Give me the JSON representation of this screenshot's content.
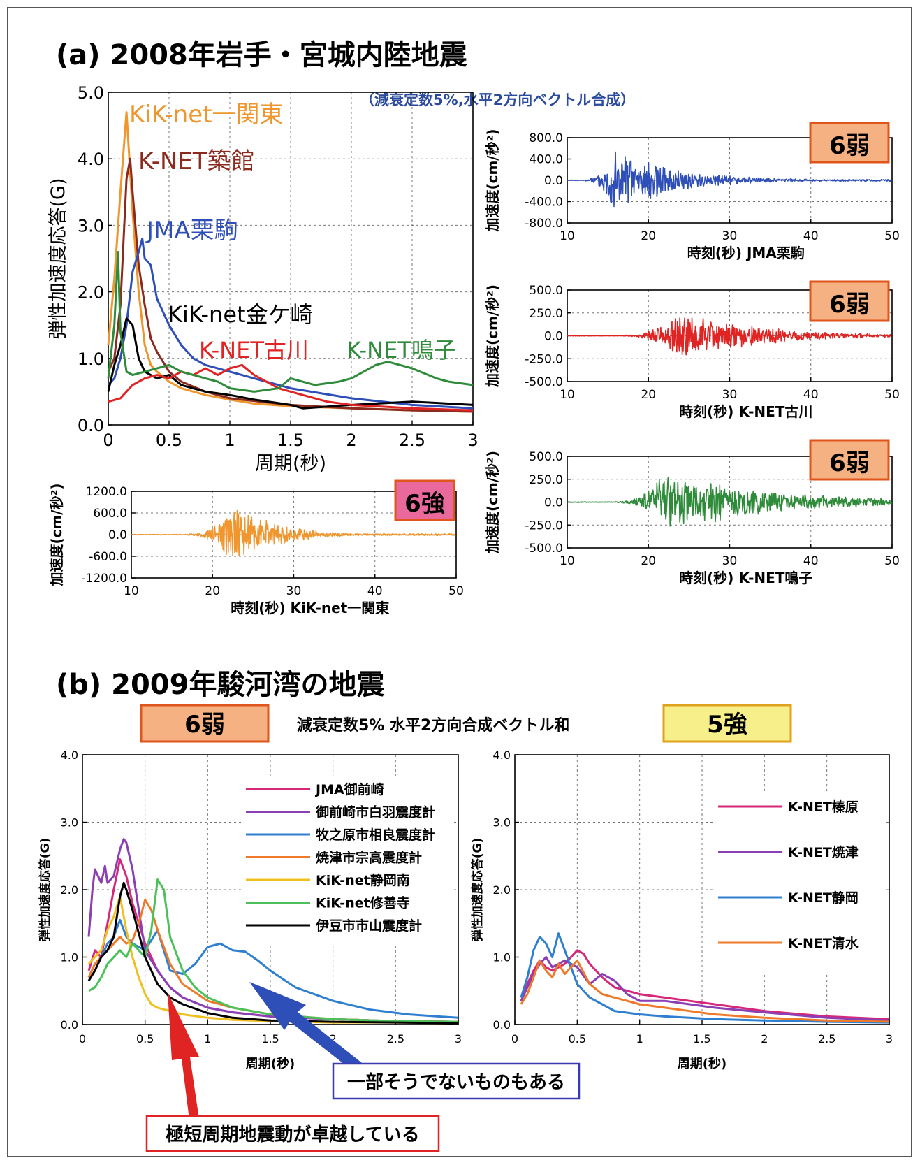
{
  "panel_a": {
    "title": "(a) 2008年岩手・宮城内陸地震",
    "note": "（減衰定数5%,水平2方向ベクトル合成）"
  },
  "panel_b": {
    "title": "(b) 2009年駿河湾の地震",
    "note": "減衰定数5% 水平2方向合成ベクトル和",
    "badge_left": "6弱",
    "badge_right": "5強",
    "arrow_red_label": "極短周期地震動が卓越している",
    "arrow_blue_label": "一部そうでないものもある"
  },
  "colors": {
    "kik_ichinoseki": "#f0962e",
    "knet_tsukidate": "#8b2a1f",
    "jma_kurikoma": "#2f4fb8",
    "kik_kanegasaki": "#000000",
    "knet_furukawa": "#e02424",
    "knet_naruko": "#2e8b3a",
    "badge_orange_fill": "#f6b183",
    "badge_pink_fill": "#e9699d",
    "badge_yellow_fill": "#f7f08a"
  },
  "chart_data": [
    {
      "id": "a_spectra",
      "type": "line",
      "title": "",
      "xlabel": "周期(秒)",
      "ylabel": "弾性加速度応答(G)",
      "xlim": [
        0,
        3
      ],
      "ylim": [
        0,
        5
      ],
      "xticks": [
        "0",
        "0.5",
        "1",
        "1.5",
        "2",
        "2.5",
        "3"
      ],
      "yticks": [
        "0.0",
        "1.0",
        "2.0",
        "3.0",
        "4.0",
        "5.0"
      ],
      "grid": true,
      "series": [
        {
          "name": "KiK-net一関東",
          "color": "#f0962e",
          "x": [
            0,
            0.05,
            0.1,
            0.15,
            0.2,
            0.25,
            0.3,
            0.35,
            0.4,
            0.5,
            0.6,
            0.8,
            1.0,
            1.2,
            1.5,
            2.0,
            2.5,
            3.0
          ],
          "y": [
            1.2,
            2.2,
            3.5,
            4.7,
            3.2,
            2.0,
            1.2,
            0.9,
            0.8,
            0.65,
            0.55,
            0.45,
            0.38,
            0.32,
            0.28,
            0.25,
            0.22,
            0.2
          ]
        },
        {
          "name": "K-NET築館",
          "color": "#8b2a1f",
          "x": [
            0,
            0.05,
            0.1,
            0.15,
            0.18,
            0.2,
            0.25,
            0.3,
            0.35,
            0.4,
            0.5,
            0.6,
            0.8,
            1.0,
            1.5,
            2.0,
            2.5,
            3.0
          ],
          "y": [
            0.8,
            1.0,
            1.8,
            3.7,
            4.0,
            3.5,
            2.4,
            1.8,
            1.3,
            1.1,
            0.8,
            0.65,
            0.5,
            0.4,
            0.3,
            0.25,
            0.22,
            0.2
          ]
        },
        {
          "name": "JMA栗駒",
          "color": "#2f4fb8",
          "x": [
            0,
            0.05,
            0.1,
            0.15,
            0.2,
            0.25,
            0.28,
            0.3,
            0.35,
            0.4,
            0.5,
            0.6,
            0.7,
            0.8,
            1.0,
            1.2,
            1.5,
            2.0,
            2.5,
            3.0
          ],
          "y": [
            0.6,
            0.7,
            1.0,
            1.5,
            2.3,
            2.6,
            2.8,
            2.5,
            2.4,
            1.9,
            1.5,
            1.2,
            1.0,
            0.9,
            0.8,
            0.7,
            0.55,
            0.4,
            0.3,
            0.25
          ]
        },
        {
          "name": "KiK-net金ケ崎",
          "color": "#000000",
          "x": [
            0,
            0.05,
            0.1,
            0.15,
            0.2,
            0.25,
            0.3,
            0.4,
            0.5,
            0.6,
            0.8,
            1.0,
            1.2,
            1.5,
            1.6,
            2.0,
            2.5,
            3.0
          ],
          "y": [
            0.5,
            0.9,
            1.2,
            1.6,
            1.5,
            1.0,
            0.8,
            0.7,
            0.75,
            0.6,
            0.5,
            0.45,
            0.38,
            0.3,
            0.25,
            0.3,
            0.35,
            0.3
          ]
        },
        {
          "name": "K-NET古川",
          "color": "#e02424",
          "x": [
            0,
            0.1,
            0.2,
            0.3,
            0.4,
            0.5,
            0.6,
            0.7,
            0.8,
            0.9,
            1.0,
            1.1,
            1.2,
            1.4,
            1.6,
            1.8,
            2.0,
            2.5,
            3.0
          ],
          "y": [
            0.35,
            0.4,
            0.6,
            0.7,
            0.75,
            0.7,
            0.8,
            0.75,
            0.85,
            0.75,
            0.85,
            0.9,
            0.75,
            0.55,
            0.45,
            0.35,
            0.3,
            0.25,
            0.22
          ]
        },
        {
          "name": "K-NET鳴子",
          "color": "#2e8b3a",
          "x": [
            0,
            0.05,
            0.08,
            0.1,
            0.15,
            0.2,
            0.3,
            0.4,
            0.5,
            0.6,
            0.7,
            0.8,
            0.9,
            1.0,
            1.2,
            1.4,
            1.5,
            1.7,
            1.9,
            2.0,
            2.2,
            2.3,
            2.5,
            2.7,
            2.8,
            3.0
          ],
          "y": [
            0.7,
            1.5,
            2.6,
            1.4,
            0.8,
            0.75,
            0.8,
            0.85,
            0.9,
            0.8,
            0.75,
            0.7,
            0.65,
            0.55,
            0.5,
            0.55,
            0.7,
            0.6,
            0.65,
            0.7,
            0.9,
            0.95,
            0.85,
            0.7,
            0.65,
            0.6
          ]
        }
      ]
    },
    {
      "id": "a_wave_ichinoseki",
      "type": "line",
      "xlabel": "時刻(秒)",
      "caption": "KiK-net一関東",
      "ylabel": "加速度(cm/秒²)",
      "xlim": [
        10,
        50
      ],
      "ylim": [
        -1200,
        1200
      ],
      "xticks": [
        "10",
        "20",
        "30",
        "40",
        "50"
      ],
      "yticks": [
        "1200.0",
        "600.0",
        "0.0",
        "-600.0",
        "-1200.0"
      ],
      "intensity": "6強",
      "series": [
        {
          "name": "KiK-net一関東",
          "color": "#f0962e",
          "envelope": {
            "start": 17,
            "peak_time": 23,
            "peak": 1000,
            "end": 50,
            "decay": 4.5
          }
        }
      ]
    },
    {
      "id": "a_wave_kurikoma",
      "type": "line",
      "xlabel": "時刻(秒)",
      "caption": "JMA栗駒",
      "ylabel": "加速度(cm/秒²)",
      "xlim": [
        10,
        50
      ],
      "ylim": [
        -800,
        800
      ],
      "xticks": [
        "10",
        "20",
        "30",
        "40",
        "50"
      ],
      "yticks": [
        "800.0",
        "400.0",
        "0.0",
        "-400.0",
        "-800.0"
      ],
      "intensity": "6弱",
      "series": [
        {
          "name": "JMA栗駒",
          "color": "#2f4fb8",
          "envelope": {
            "start": 12,
            "peak_time": 16,
            "peak": 700,
            "end": 50,
            "decay": 7
          }
        }
      ]
    },
    {
      "id": "a_wave_furukawa",
      "type": "line",
      "xlabel": "時刻(秒)",
      "caption": "K-NET古川",
      "ylabel": "加速度(cm/秒²)",
      "xlim": [
        10,
        50
      ],
      "ylim": [
        -500,
        500
      ],
      "xticks": [
        "10",
        "20",
        "30",
        "40",
        "50"
      ],
      "yticks": [
        "500.0",
        "250.0",
        "0.0",
        "-250.0",
        "-500.0"
      ],
      "intensity": "6弱",
      "series": [
        {
          "name": "K-NET古川",
          "color": "#e02424",
          "envelope": {
            "start": 17,
            "peak_time": 24,
            "peak": 300,
            "end": 50,
            "decay": 9
          }
        }
      ]
    },
    {
      "id": "a_wave_naruko",
      "type": "line",
      "xlabel": "時刻(秒)",
      "caption": "K-NET鳴子",
      "ylabel": "加速度(cm/秒²)",
      "xlim": [
        10,
        50
      ],
      "ylim": [
        -500,
        500
      ],
      "xticks": [
        "10",
        "20",
        "30",
        "40",
        "50"
      ],
      "yticks": [
        "500.0",
        "250.0",
        "0.0",
        "-250.0",
        "-500.0"
      ],
      "intensity": "6弱",
      "series": [
        {
          "name": "K-NET鳴子",
          "color": "#2e8b3a",
          "envelope": {
            "start": 16,
            "peak_time": 22.5,
            "peak": 380,
            "end": 50,
            "decay": 12
          }
        }
      ]
    },
    {
      "id": "b_spectra_6lower",
      "type": "line",
      "xlabel": "周期(秒)",
      "ylabel": "弾性加速度応答(G)",
      "xlim": [
        0,
        3
      ],
      "ylim": [
        0,
        4
      ],
      "xticks": [
        "0",
        "0.5",
        "1",
        "1.5",
        "2",
        "2.5",
        "3"
      ],
      "yticks": [
        "0.0",
        "1.0",
        "2.0",
        "3.0",
        "4.0"
      ],
      "grid": true,
      "series": [
        {
          "name": "JMA御前崎",
          "color": "#d6287a",
          "x": [
            0.05,
            0.1,
            0.15,
            0.2,
            0.25,
            0.3,
            0.35,
            0.4,
            0.5,
            0.6,
            0.7,
            0.8,
            1.0,
            1.2,
            1.5,
            2.0,
            2.5,
            3.0
          ],
          "y": [
            0.8,
            1.1,
            1.0,
            1.5,
            2.0,
            2.45,
            2.2,
            1.8,
            1.2,
            0.8,
            0.55,
            0.4,
            0.25,
            0.18,
            0.12,
            0.08,
            0.05,
            0.04
          ]
        },
        {
          "name": "御前崎市白羽震度計",
          "color": "#8a3fb5",
          "x": [
            0.05,
            0.08,
            0.1,
            0.15,
            0.18,
            0.2,
            0.25,
            0.3,
            0.33,
            0.35,
            0.4,
            0.45,
            0.5,
            0.6,
            0.7,
            0.8,
            1.0,
            1.2,
            1.5,
            2.0,
            2.5,
            3.0
          ],
          "y": [
            1.3,
            2.0,
            2.3,
            2.1,
            2.35,
            2.1,
            2.2,
            2.6,
            2.75,
            2.7,
            2.3,
            1.7,
            1.1,
            0.8,
            0.55,
            0.4,
            0.25,
            0.18,
            0.12,
            0.08,
            0.05,
            0.04
          ]
        },
        {
          "name": "牧之原市相良震度計",
          "color": "#2f7fd0",
          "x": [
            0.05,
            0.1,
            0.15,
            0.2,
            0.25,
            0.3,
            0.35,
            0.4,
            0.5,
            0.6,
            0.7,
            0.8,
            0.9,
            1.0,
            1.1,
            1.2,
            1.3,
            1.4,
            1.5,
            1.7,
            2.0,
            2.3,
            2.6,
            3.0
          ],
          "y": [
            0.7,
            0.9,
            1.0,
            1.2,
            1.3,
            1.55,
            1.3,
            1.2,
            1.1,
            1.4,
            0.8,
            0.75,
            0.9,
            1.15,
            1.2,
            1.1,
            1.08,
            0.95,
            0.8,
            0.55,
            0.35,
            0.22,
            0.15,
            0.1
          ]
        },
        {
          "name": "焼津市宗高震度計",
          "color": "#ef7a2a",
          "x": [
            0.05,
            0.1,
            0.15,
            0.2,
            0.25,
            0.3,
            0.35,
            0.4,
            0.45,
            0.5,
            0.55,
            0.6,
            0.7,
            0.8,
            1.0,
            1.2,
            1.5,
            2.0,
            2.5,
            3.0
          ],
          "y": [
            0.7,
            0.9,
            1.0,
            1.1,
            1.2,
            1.3,
            1.2,
            1.25,
            1.5,
            1.85,
            1.7,
            1.4,
            0.9,
            0.6,
            0.35,
            0.25,
            0.15,
            0.08,
            0.05,
            0.04
          ]
        },
        {
          "name": "KiK-net静岡南",
          "color": "#f0c020",
          "x": [
            0.05,
            0.1,
            0.15,
            0.2,
            0.25,
            0.3,
            0.35,
            0.4,
            0.45,
            0.5,
            0.55,
            0.6,
            0.7,
            0.8,
            1.0,
            1.2,
            1.5,
            2.0,
            2.5,
            3.0
          ],
          "y": [
            0.9,
            1.0,
            1.1,
            1.4,
            1.6,
            1.9,
            1.4,
            1.0,
            0.7,
            0.45,
            0.3,
            0.25,
            0.2,
            0.15,
            0.1,
            0.07,
            0.05,
            0.03,
            0.03,
            0.02
          ]
        },
        {
          "name": "KiK-net修善寺",
          "color": "#4cc15a",
          "x": [
            0.05,
            0.1,
            0.15,
            0.2,
            0.25,
            0.3,
            0.35,
            0.4,
            0.5,
            0.55,
            0.6,
            0.65,
            0.7,
            0.8,
            0.9,
            1.0,
            1.2,
            1.5,
            2.0,
            2.5,
            3.0
          ],
          "y": [
            0.5,
            0.55,
            0.7,
            0.9,
            1.0,
            1.1,
            1.0,
            1.2,
            1.0,
            1.4,
            2.15,
            2.0,
            1.3,
            0.8,
            0.55,
            0.4,
            0.25,
            0.15,
            0.08,
            0.05,
            0.04
          ]
        },
        {
          "name": "伊豆市市山震度計",
          "color": "#000000",
          "x": [
            0.05,
            0.1,
            0.15,
            0.2,
            0.25,
            0.3,
            0.33,
            0.35,
            0.4,
            0.5,
            0.6,
            0.7,
            0.8,
            1.0,
            1.2,
            1.5,
            2.0,
            2.5,
            3.0
          ],
          "y": [
            0.65,
            0.8,
            1.0,
            1.1,
            1.3,
            1.9,
            2.1,
            2.0,
            1.7,
            1.0,
            0.6,
            0.4,
            0.3,
            0.17,
            0.1,
            0.06,
            0.04,
            0.03,
            0.02
          ]
        }
      ]
    },
    {
      "id": "b_spectra_5upper",
      "type": "line",
      "xlabel": "周期(秒)",
      "ylabel": "弾性加速度応答(G)",
      "xlim": [
        0,
        3
      ],
      "ylim": [
        0,
        4
      ],
      "xticks": [
        "0",
        "0.5",
        "1",
        "1.5",
        "2",
        "2.5",
        "3"
      ],
      "yticks": [
        "0.0",
        "1.0",
        "2.0",
        "3.0",
        "4.0"
      ],
      "grid": true,
      "series": [
        {
          "name": "K-NET榛原",
          "color": "#d6287a",
          "x": [
            0.05,
            0.1,
            0.15,
            0.2,
            0.25,
            0.3,
            0.35,
            0.4,
            0.45,
            0.5,
            0.55,
            0.6,
            0.7,
            0.8,
            1.0,
            1.2,
            1.4,
            1.6,
            2.0,
            2.5,
            3.0
          ],
          "y": [
            0.4,
            0.6,
            0.8,
            0.95,
            0.85,
            0.8,
            0.85,
            0.9,
            1.0,
            1.1,
            1.05,
            0.9,
            0.7,
            0.55,
            0.45,
            0.4,
            0.35,
            0.3,
            0.2,
            0.12,
            0.08
          ]
        },
        {
          "name": "K-NET焼津",
          "color": "#8a3fb5",
          "x": [
            0.05,
            0.1,
            0.15,
            0.2,
            0.25,
            0.3,
            0.35,
            0.4,
            0.5,
            0.6,
            0.7,
            0.8,
            0.9,
            1.0,
            1.2,
            1.4,
            1.6,
            2.0,
            2.5,
            3.0
          ],
          "y": [
            0.35,
            0.55,
            0.75,
            0.9,
            1.0,
            0.85,
            0.9,
            0.95,
            0.85,
            0.6,
            0.75,
            0.65,
            0.45,
            0.35,
            0.35,
            0.3,
            0.25,
            0.18,
            0.1,
            0.06
          ]
        },
        {
          "name": "K-NET静岡",
          "color": "#2f7fd0",
          "x": [
            0.05,
            0.1,
            0.15,
            0.2,
            0.25,
            0.3,
            0.35,
            0.4,
            0.5,
            0.6,
            0.7,
            0.8,
            1.0,
            1.2,
            1.4,
            1.6,
            2.0,
            2.5,
            3.0
          ],
          "y": [
            0.4,
            0.7,
            1.1,
            1.3,
            1.2,
            1.0,
            1.35,
            1.1,
            0.6,
            0.4,
            0.3,
            0.2,
            0.15,
            0.12,
            0.1,
            0.08,
            0.06,
            0.04,
            0.03
          ]
        },
        {
          "name": "K-NET清水",
          "color": "#ef7a2a",
          "x": [
            0.05,
            0.1,
            0.15,
            0.2,
            0.25,
            0.3,
            0.35,
            0.4,
            0.5,
            0.6,
            0.7,
            0.8,
            1.0,
            1.2,
            1.4,
            1.6,
            2.0,
            2.5,
            3.0
          ],
          "y": [
            0.3,
            0.45,
            0.7,
            0.95,
            0.8,
            0.7,
            0.9,
            0.75,
            0.95,
            0.6,
            0.45,
            0.4,
            0.3,
            0.25,
            0.2,
            0.15,
            0.1,
            0.06,
            0.04
          ]
        }
      ]
    }
  ]
}
